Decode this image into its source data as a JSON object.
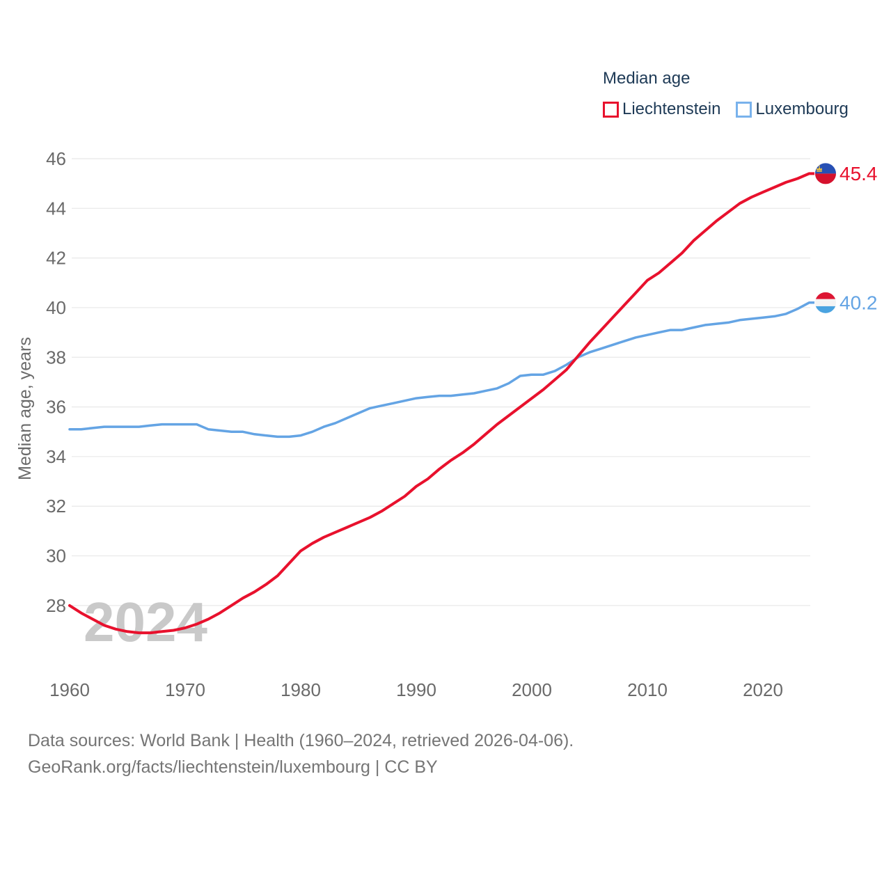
{
  "legend": {
    "title": "Median age",
    "items": [
      {
        "label": "Liechtenstein",
        "color": "#e8112d"
      },
      {
        "label": "Luxembourg",
        "color": "#79b2ec"
      }
    ]
  },
  "chart_data": {
    "type": "line",
    "title": "Median age",
    "ylabel": "Median age, years",
    "xlabel": "",
    "grid": "horizontal",
    "legend_position": "top-right",
    "xlim": [
      1960,
      2024
    ],
    "ylim": [
      26.4,
      46.6
    ],
    "xticks": [
      1960,
      1970,
      1980,
      1990,
      2000,
      2010,
      2020
    ],
    "yticks": [
      28,
      30,
      32,
      34,
      36,
      38,
      40,
      42,
      44,
      46
    ],
    "x": [
      1960,
      1961,
      1962,
      1963,
      1964,
      1965,
      1966,
      1967,
      1968,
      1969,
      1970,
      1971,
      1972,
      1973,
      1974,
      1975,
      1976,
      1977,
      1978,
      1979,
      1980,
      1981,
      1982,
      1983,
      1984,
      1985,
      1986,
      1987,
      1988,
      1989,
      1990,
      1991,
      1992,
      1993,
      1994,
      1995,
      1996,
      1997,
      1998,
      1999,
      2000,
      2001,
      2002,
      2003,
      2004,
      2005,
      2006,
      2007,
      2008,
      2009,
      2010,
      2011,
      2012,
      2013,
      2014,
      2015,
      2016,
      2017,
      2018,
      2019,
      2020,
      2021,
      2022,
      2023,
      2024
    ],
    "series": [
      {
        "name": "Liechtenstein",
        "color": "#e8112d",
        "line_width": 4,
        "end_label": "45.4",
        "flag": "liechtenstein",
        "values": [
          28.0,
          27.7,
          27.45,
          27.2,
          27.05,
          26.95,
          26.9,
          26.9,
          26.95,
          27.0,
          27.1,
          27.25,
          27.45,
          27.7,
          28.0,
          28.3,
          28.55,
          28.85,
          29.2,
          29.7,
          30.2,
          30.5,
          30.75,
          30.95,
          31.15,
          31.35,
          31.55,
          31.8,
          32.1,
          32.4,
          32.8,
          33.1,
          33.5,
          33.85,
          34.15,
          34.5,
          34.9,
          35.3,
          35.65,
          36.0,
          36.35,
          36.7,
          37.1,
          37.5,
          38.05,
          38.6,
          39.1,
          39.6,
          40.1,
          40.6,
          41.1,
          41.4,
          41.8,
          42.2,
          42.7,
          43.1,
          43.5,
          43.85,
          44.2,
          44.45,
          44.65,
          44.85,
          45.05,
          45.2,
          45.4
        ]
      },
      {
        "name": "Luxembourg",
        "color": "#64a4e4",
        "line_width": 3.5,
        "end_label": "40.2",
        "flag": "luxembourg",
        "values": [
          35.1,
          35.1,
          35.15,
          35.2,
          35.2,
          35.2,
          35.2,
          35.25,
          35.3,
          35.3,
          35.3,
          35.3,
          35.1,
          35.05,
          35.0,
          35.0,
          34.9,
          34.85,
          34.8,
          34.8,
          34.85,
          35.0,
          35.2,
          35.35,
          35.55,
          35.75,
          35.95,
          36.05,
          36.15,
          36.25,
          36.35,
          36.4,
          36.45,
          36.45,
          36.5,
          36.55,
          36.65,
          36.75,
          36.95,
          37.25,
          37.3,
          37.3,
          37.45,
          37.7,
          38.0,
          38.2,
          38.35,
          38.5,
          38.65,
          38.8,
          38.9,
          39.0,
          39.1,
          39.1,
          39.2,
          39.3,
          39.35,
          39.4,
          39.5,
          39.55,
          39.6,
          39.65,
          39.75,
          39.95,
          40.2
        ]
      }
    ]
  },
  "watermark": "2024",
  "colors": {
    "grid": "#e8e8e8",
    "tick_text": "#6a6a6a",
    "axis_title": "#6a6a6a",
    "watermark": "#c9c9c9",
    "liechtenstein_flag": {
      "top_blue": "#2750b4",
      "bottom_red": "#d5112d",
      "crown_gold": "#f3c53d"
    },
    "luxembourg_flag": {
      "top_red": "#dd1633",
      "middle_white": "#f4f4f4",
      "bottom_blue": "#4aa3e0"
    }
  },
  "footer": {
    "line1": "Data sources: World Bank | Health (1960–2024, retrieved 2026-04-06).",
    "line2": "GeoRank.org/facts/liechtenstein/luxembourg | CC BY"
  }
}
